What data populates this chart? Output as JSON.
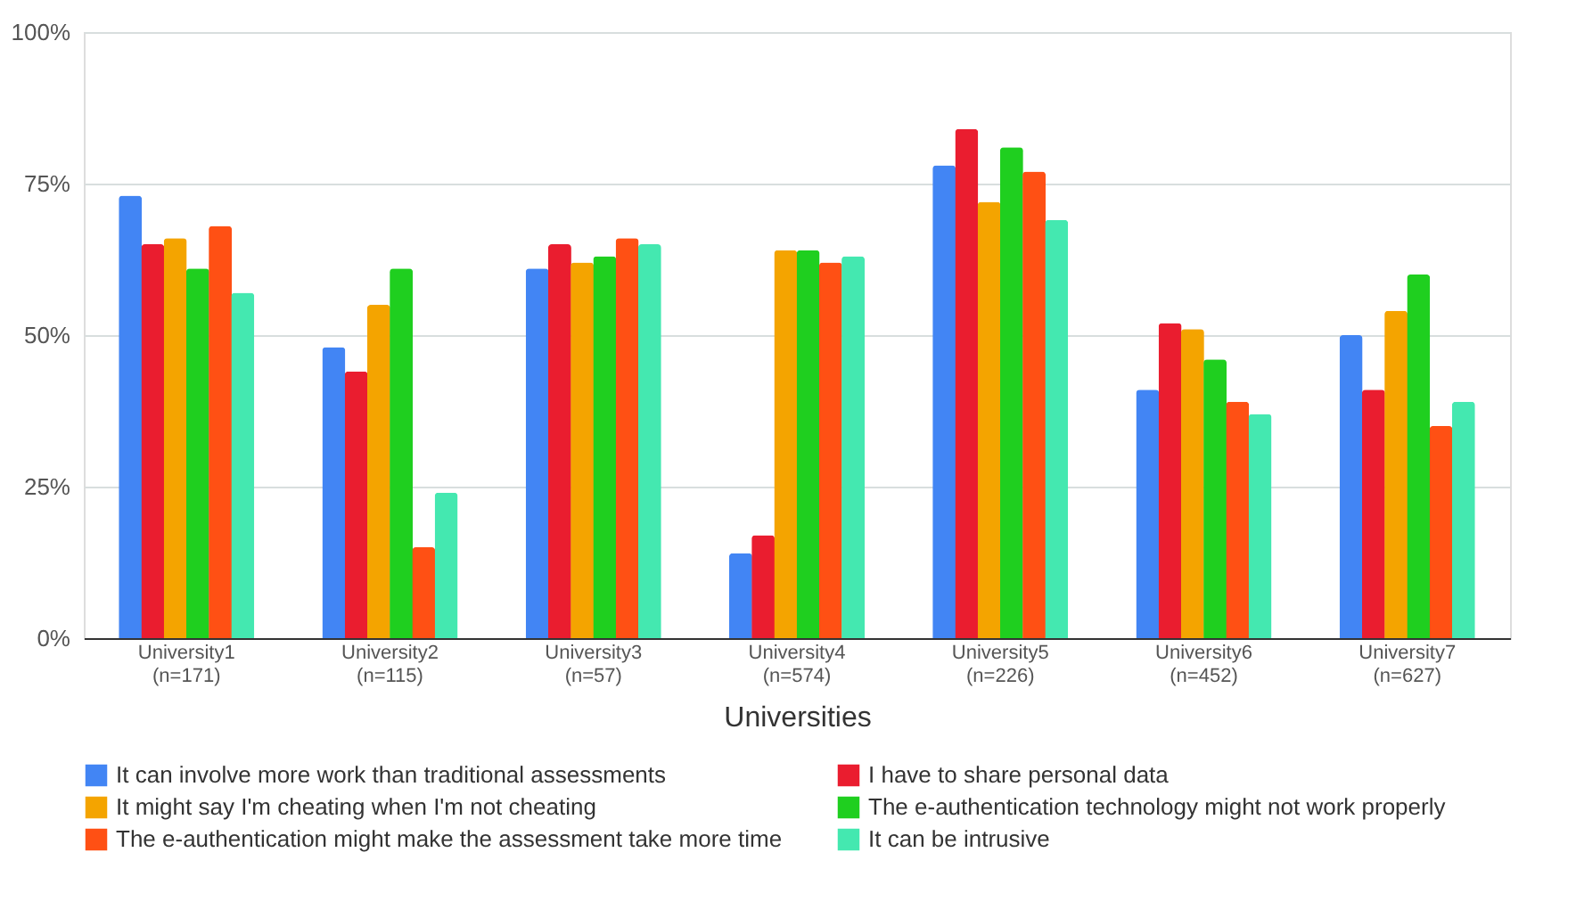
{
  "chart_data": {
    "type": "bar",
    "xlabel": "Universities",
    "categories": [
      "University1\n(n=171)",
      "University2\n(n=115)",
      "University3\n(n=57)",
      "University4\n(n=574)",
      "University5\n(n=226)",
      "University6\n(n=452)",
      "University7\n(n=627)"
    ],
    "series": [
      {
        "name": "It can involve more work than traditional assessments",
        "color": "#4285f4",
        "values": [
          73,
          48,
          61,
          14,
          78,
          41,
          50
        ]
      },
      {
        "name": "I have to share personal data",
        "color": "#ea1d2f",
        "values": [
          65,
          44,
          65,
          17,
          84,
          52,
          41
        ]
      },
      {
        "name": "It might say I'm cheating when I'm not cheating",
        "color": "#f4a400",
        "values": [
          66,
          55,
          62,
          64,
          72,
          51,
          54
        ]
      },
      {
        "name": "The e-authentication technology might not work properly",
        "color": "#1fcf1f",
        "values": [
          61,
          61,
          63,
          64,
          81,
          46,
          60
        ]
      },
      {
        "name": "The e-authentication might make the assessment take more time",
        "color": "#ff5014",
        "values": [
          68,
          15,
          66,
          62,
          77,
          39,
          35
        ]
      },
      {
        "name": "It can be intrusive",
        "color": "#44e8b0",
        "values": [
          57,
          24,
          65,
          63,
          69,
          37,
          39
        ]
      }
    ],
    "ylim": [
      0,
      100
    ],
    "yticks": [
      {
        "value": 0,
        "label": "0%"
      },
      {
        "value": 25,
        "label": "25%"
      },
      {
        "value": 50,
        "label": "50%"
      },
      {
        "value": 75,
        "label": "75%"
      },
      {
        "value": 100,
        "label": "100%"
      }
    ],
    "grid": "y",
    "legend": "bottom"
  }
}
